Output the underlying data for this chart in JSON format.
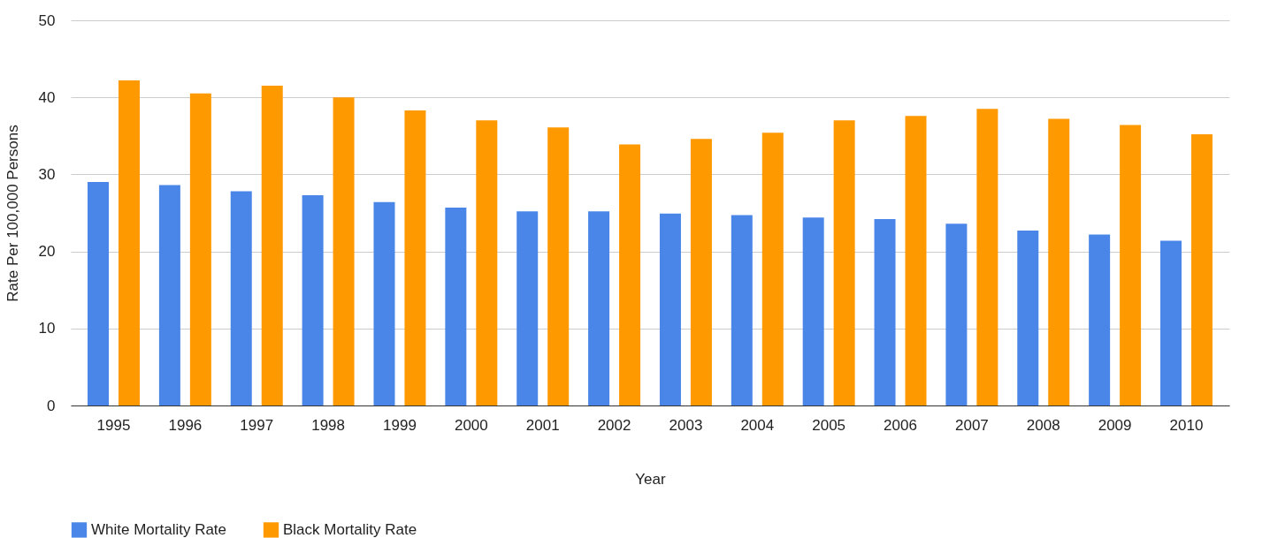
{
  "chart_data": {
    "type": "bar",
    "xlabel": "Year",
    "ylabel": "Rate Per 100,000 Persons",
    "categories": [
      "1995",
      "1996",
      "1997",
      "1998",
      "1999",
      "2000",
      "2001",
      "2002",
      "2003",
      "2004",
      "2005",
      "2006",
      "2007",
      "2008",
      "2009",
      "2010"
    ],
    "series": [
      {
        "name": "White Mortality Rate",
        "color": "#4a86e8",
        "values": [
          29.0,
          28.6,
          27.8,
          27.3,
          26.4,
          25.7,
          25.2,
          25.2,
          24.9,
          24.7,
          24.4,
          24.2,
          23.6,
          22.7,
          22.2,
          21.4
        ]
      },
      {
        "name": "Black Mortality Rate",
        "color": "#ff9900",
        "values": [
          42.2,
          40.5,
          41.5,
          40.0,
          38.3,
          37.0,
          36.1,
          33.9,
          34.6,
          35.4,
          37.0,
          37.6,
          38.5,
          37.2,
          36.4,
          35.2
        ]
      }
    ],
    "ylim": [
      0,
      50
    ],
    "yticks": [
      0,
      10,
      20,
      30,
      40,
      50
    ],
    "grid": "y",
    "legend": "bottom"
  }
}
